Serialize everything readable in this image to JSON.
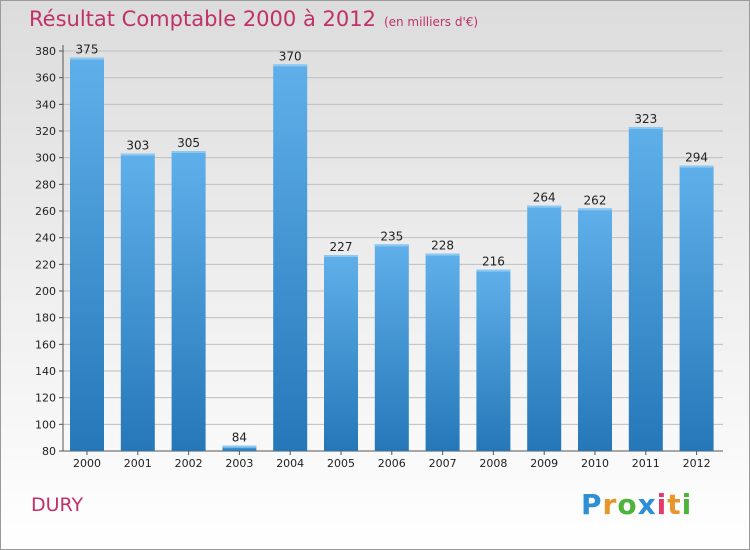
{
  "title": "Résultat Comptable 2000 à 2012",
  "subtitle": "(en milliers d'€)",
  "commune": "DURY",
  "logo": {
    "text": "Proxiti",
    "letters": [
      "P",
      "r",
      "o",
      "x",
      "i",
      "t",
      "i"
    ],
    "colors": [
      "#2e8fd6",
      "#e8952a",
      "#4fb23a",
      "#2e8fd6",
      "#e23b6a",
      "#e8952a",
      "#4fb23a"
    ]
  },
  "colors": {
    "title": "#c0306a",
    "bar_top": "#5fb0ea",
    "bar_bottom": "#2577b8",
    "grid": "#bfbfbf"
  },
  "chart_data": {
    "type": "bar",
    "categories": [
      "2000",
      "2001",
      "2002",
      "2003",
      "2004",
      "2005",
      "2006",
      "2007",
      "2008",
      "2009",
      "2010",
      "2011",
      "2012"
    ],
    "values": [
      375,
      303,
      305,
      84,
      370,
      227,
      235,
      228,
      216,
      264,
      262,
      323,
      294
    ],
    "data_labels": [
      "375",
      "303",
      "305",
      "84",
      "370",
      "227",
      "235",
      "228",
      "216",
      "264",
      "262",
      "323",
      "294"
    ],
    "yticks": [
      "80",
      "100",
      "120",
      "140",
      "160",
      "180",
      "200",
      "220",
      "240",
      "260",
      "280",
      "300",
      "320",
      "340",
      "360",
      "380"
    ],
    "ylim": [
      80,
      380
    ],
    "ystep": 20,
    "grid": true
  }
}
